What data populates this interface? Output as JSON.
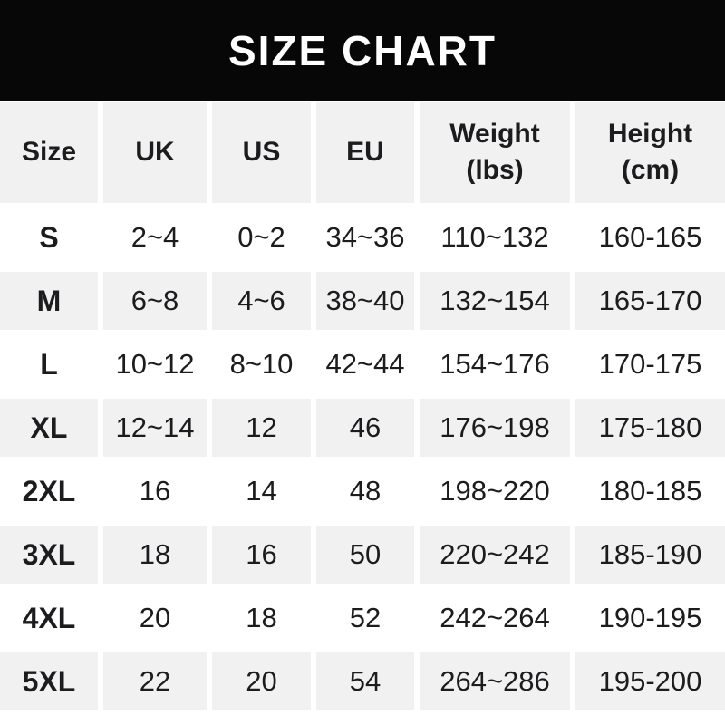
{
  "banner": {
    "title": "SIZE CHART"
  },
  "colors": {
    "banner_bg": "#070707",
    "banner_text": "#ffffff",
    "row_stripe": "#f1f1f2",
    "row_alt": "#ffffff",
    "table_text": "#1c1c1e"
  },
  "header": {
    "cells": [
      {
        "line1": "Size",
        "line2": ""
      },
      {
        "line1": "UK",
        "line2": ""
      },
      {
        "line1": "US",
        "line2": ""
      },
      {
        "line1": "EU",
        "line2": ""
      },
      {
        "line1": "Weight",
        "line2": "(lbs)"
      },
      {
        "line1": "Height",
        "line2": "(cm)"
      }
    ]
  },
  "chart_data": {
    "type": "table",
    "title": "SIZE CHART",
    "columns": [
      "Size",
      "UK",
      "US",
      "EU",
      "Weight (lbs)",
      "Height (cm)"
    ],
    "rows": [
      [
        "S",
        "2~4",
        "0~2",
        "34~36",
        "110~132",
        "160-165"
      ],
      [
        "M",
        "6~8",
        "4~6",
        "38~40",
        "132~154",
        "165-170"
      ],
      [
        "L",
        "10~12",
        "8~10",
        "42~44",
        "154~176",
        "170-175"
      ],
      [
        "XL",
        "12~14",
        "12",
        "46",
        "176~198",
        "175-180"
      ],
      [
        "2XL",
        "16",
        "14",
        "48",
        "198~220",
        "180-185"
      ],
      [
        "3XL",
        "18",
        "16",
        "50",
        "220~242",
        "185-190"
      ],
      [
        "4XL",
        "20",
        "18",
        "52",
        "242~264",
        "190-195"
      ],
      [
        "5XL",
        "22",
        "20",
        "54",
        "264~286",
        "195-200"
      ]
    ],
    "layout": {
      "striped_rows": true,
      "stripe_pattern": "header, M, XL, 3XL, 5XL shaded",
      "value_separators": {
        "uk_us_eu_weight": "~",
        "height": "-"
      }
    }
  }
}
